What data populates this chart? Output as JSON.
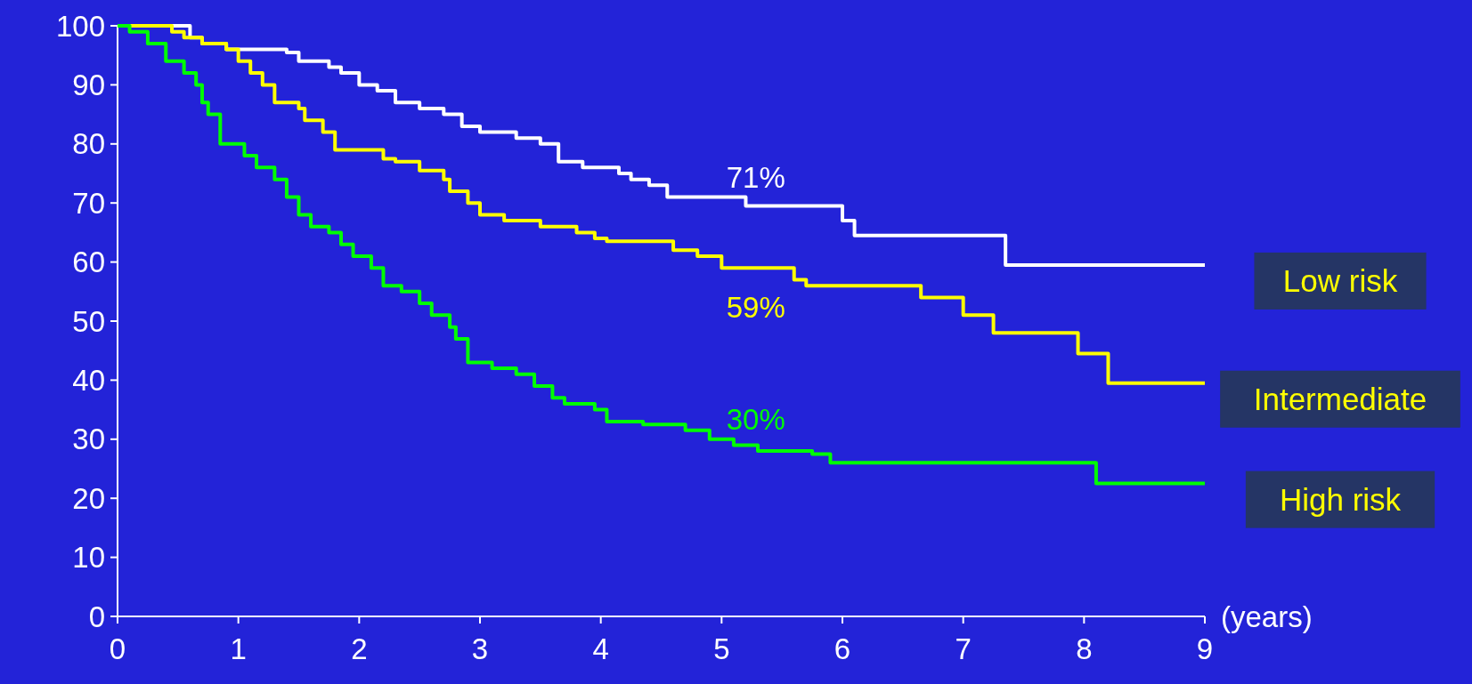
{
  "chart_data": {
    "type": "step",
    "xlabel": "(years)",
    "xlim": [
      0,
      9
    ],
    "xticks": [
      0,
      1,
      2,
      3,
      4,
      5,
      6,
      7,
      8,
      9
    ],
    "ylim": [
      0,
      100
    ],
    "yticks": [
      0,
      10,
      20,
      30,
      40,
      50,
      60,
      70,
      80,
      90,
      100
    ],
    "grid": false,
    "legend": "right",
    "series": [
      {
        "name": "Low risk",
        "color": "#ffffff",
        "x": [
          0,
          0.6,
          0.7,
          0.9,
          1.4,
          1.5,
          1.75,
          1.85,
          2.0,
          2.15,
          2.3,
          2.5,
          2.7,
          2.85,
          3.0,
          3.3,
          3.5,
          3.65,
          3.85,
          4.15,
          4.25,
          4.4,
          4.55,
          5.2,
          6.0,
          6.1,
          7.35,
          9
        ],
        "values": [
          100,
          98,
          97,
          96,
          95.5,
          94,
          93,
          92,
          90,
          89,
          87,
          86,
          85,
          83,
          82,
          81,
          80,
          77,
          76,
          75,
          74,
          73,
          71,
          69.5,
          67,
          64.5,
          59.5,
          59.5
        ]
      },
      {
        "name": "Intermediate",
        "color": "#ffff00",
        "x": [
          0,
          0.45,
          0.55,
          0.7,
          0.9,
          1.0,
          1.1,
          1.2,
          1.3,
          1.5,
          1.55,
          1.7,
          1.8,
          2.2,
          2.3,
          2.5,
          2.7,
          2.75,
          2.9,
          3.0,
          3.2,
          3.5,
          3.8,
          3.95,
          4.05,
          4.6,
          4.8,
          5.0,
          5.6,
          5.7,
          6.65,
          7.0,
          7.25,
          7.95,
          8.2,
          9
        ],
        "values": [
          100,
          99,
          98,
          97,
          96,
          94,
          92,
          90,
          87,
          86,
          84,
          82,
          79,
          77.5,
          77,
          75.5,
          74,
          72,
          70,
          68,
          67,
          66,
          65,
          64,
          63.5,
          62,
          61,
          59,
          57,
          56,
          54,
          51,
          48,
          44.5,
          39.5,
          39.5
        ]
      },
      {
        "name": "High risk",
        "color": "#00ff00",
        "x": [
          0,
          0.1,
          0.25,
          0.4,
          0.55,
          0.65,
          0.7,
          0.75,
          0.85,
          1.05,
          1.15,
          1.3,
          1.4,
          1.5,
          1.6,
          1.75,
          1.85,
          1.95,
          2.1,
          2.2,
          2.35,
          2.5,
          2.6,
          2.75,
          2.8,
          2.9,
          3.1,
          3.3,
          3.45,
          3.6,
          3.7,
          3.95,
          4.05,
          4.35,
          4.7,
          4.9,
          5.1,
          5.3,
          5.75,
          5.9,
          8.1,
          9
        ],
        "values": [
          100,
          99,
          97,
          94,
          92,
          90,
          87,
          85,
          80,
          78,
          76,
          74,
          71,
          68,
          66,
          65,
          63,
          61,
          59,
          56,
          55,
          53,
          51,
          49,
          47,
          43,
          42,
          41,
          39,
          37,
          36,
          35,
          33,
          32.5,
          31.5,
          30,
          29,
          28,
          27.5,
          26,
          22.5,
          22.5
        ]
      }
    ],
    "annotations": [
      "71%",
      "59%",
      "30%"
    ]
  }
}
